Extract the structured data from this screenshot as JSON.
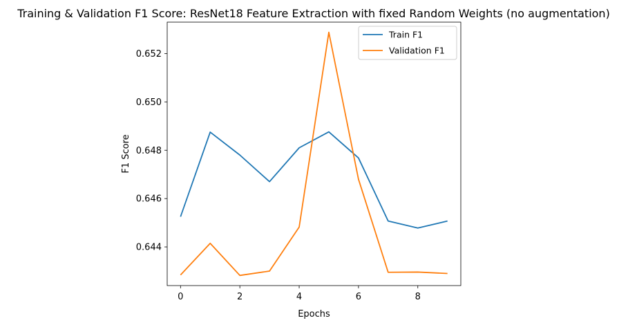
{
  "chart_data": {
    "type": "line",
    "title": "Training & Validation F1 Score: ResNet18 Feature Extraction with fixed Random Weights (no augmentation)",
    "xlabel": "Epochs",
    "ylabel": "F1 Score",
    "x": [
      0,
      1,
      2,
      3,
      4,
      5,
      6,
      7,
      8,
      9
    ],
    "xlim": [
      -0.45,
      9.45
    ],
    "ylim": [
      0.6424,
      0.6533
    ],
    "xticks": [
      0,
      2,
      4,
      6,
      8
    ],
    "xtick_labels": [
      "0",
      "2",
      "4",
      "6",
      "8"
    ],
    "yticks": [
      0.644,
      0.646,
      0.648,
      0.65,
      0.652
    ],
    "ytick_labels": [
      "0.644",
      "0.646",
      "0.648",
      "0.650",
      "0.652"
    ],
    "grid": false,
    "legend_position": "top-right",
    "series": [
      {
        "name": "Train F1",
        "color": "#1f77b4",
        "values": [
          0.64525,
          0.64875,
          0.6478,
          0.6467,
          0.6481,
          0.64876,
          0.64768,
          0.64507,
          0.64478,
          0.64507
        ]
      },
      {
        "name": "Validation F1",
        "color": "#ff7f0e",
        "values": [
          0.64284,
          0.64415,
          0.64282,
          0.643,
          0.64482,
          0.65288,
          0.6468,
          0.64295,
          0.64296,
          0.6429
        ]
      }
    ]
  }
}
